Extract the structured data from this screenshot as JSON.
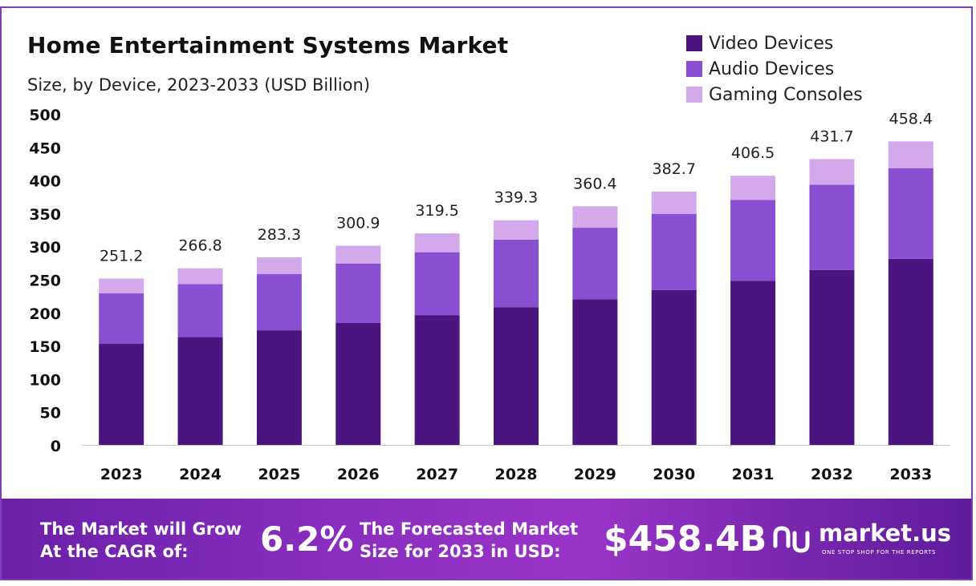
{
  "header": {
    "title": "Home Entertainment Systems Market",
    "subtitle": "Size, by Device, 2023-2033 (USD Billion)"
  },
  "legend": [
    {
      "label": "Video Devices",
      "color": "#4b147e"
    },
    {
      "label": "Audio Devices",
      "color": "#8a4fd0"
    },
    {
      "label": "Gaming Consoles",
      "color": "#d3a9ec"
    }
  ],
  "chart_data": {
    "type": "bar",
    "stacked": true,
    "categories": [
      "2023",
      "2024",
      "2025",
      "2026",
      "2027",
      "2028",
      "2029",
      "2030",
      "2031",
      "2032",
      "2033"
    ],
    "series": [
      {
        "name": "Video Devices",
        "color": "#4b147e",
        "values": [
          153,
          163,
          173,
          184,
          196,
          208,
          220,
          234,
          248,
          264,
          281
        ]
      },
      {
        "name": "Audio Devices",
        "color": "#8a4fd0",
        "values": [
          76,
          80,
          85,
          90,
          95,
          102,
          108,
          115,
          122,
          129,
          137
        ]
      },
      {
        "name": "Gaming Consoles",
        "color": "#d3a9ec",
        "values": [
          22.2,
          23.8,
          25.3,
          26.9,
          28.5,
          29.3,
          32.4,
          33.7,
          36.5,
          38.7,
          40.4
        ]
      }
    ],
    "totals": [
      "251.2",
      "266.8",
      "283.3",
      "300.9",
      "319.5",
      "339.3",
      "360.4",
      "382.7",
      "406.5",
      "431.7",
      "458.4"
    ],
    "yticks": [
      0,
      50,
      100,
      150,
      200,
      250,
      300,
      350,
      400,
      450,
      500
    ],
    "ylim": [
      0,
      500
    ],
    "grid": false,
    "legend_position": "top-right"
  },
  "footer": {
    "cagr_label_line1": "The Market will Grow",
    "cagr_label_line2": "At the CAGR of:",
    "cagr_value": "6.2%",
    "forecast_label_line1": "The Forecasted Market",
    "forecast_label_line2": "Size for 2033 in USD:",
    "forecast_value": "$458.4B",
    "brand": "market.us",
    "tagline": "ONE STOP SHOP FOR THE REPORTS"
  }
}
